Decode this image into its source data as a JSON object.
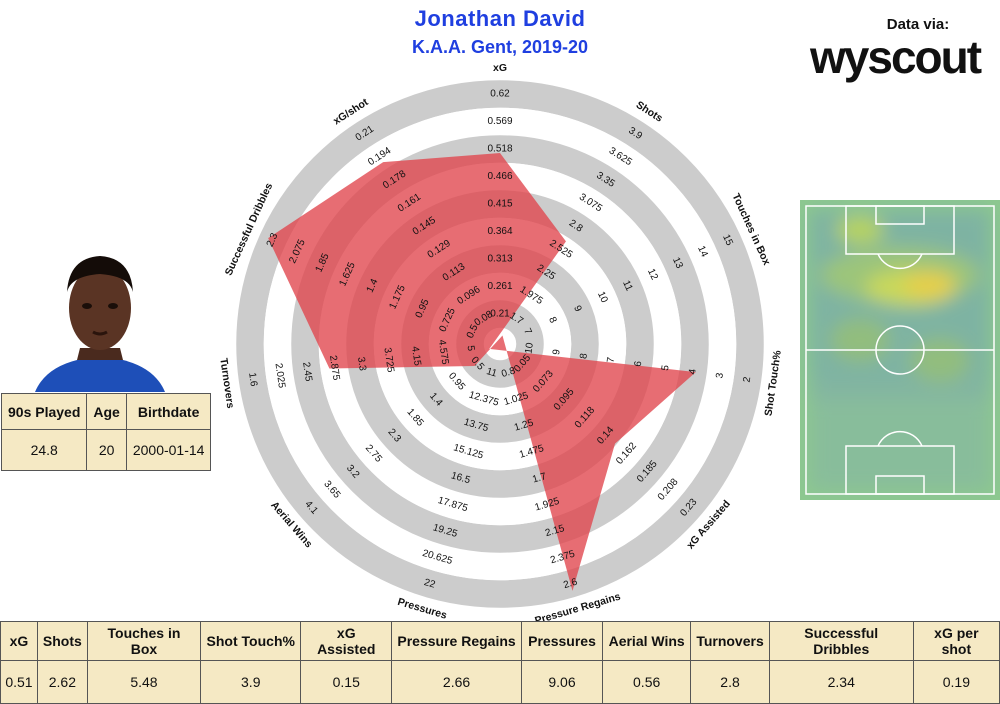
{
  "header": {
    "title": "Jonathan David",
    "subtitle": "K.A.A. Gent, 2019-20",
    "data_via": "Data via:",
    "brand": "wyscout"
  },
  "player_table": {
    "headers": [
      "90s Played",
      "Age",
      "Birthdate"
    ],
    "values": [
      "24.8",
      "20",
      "2000-01-14"
    ]
  },
  "stats_table": {
    "headers": [
      "xG",
      "Shots",
      "Touches in Box",
      "Shot Touch%",
      "xG Assisted",
      "Pressure Regains",
      "Pressures",
      "Aerial Wins",
      "Turnovers",
      "Successful Dribbles",
      "xG per shot"
    ],
    "values": [
      "0.51",
      "2.62",
      "5.48",
      "3.9",
      "0.15",
      "2.66",
      "9.06",
      "0.56",
      "2.8",
      "2.34",
      "0.19"
    ]
  },
  "colors": {
    "title": "#1f3fe0",
    "polygon": "#e0444b",
    "ring_gray": "#cccccc",
    "table_bg": "#f5e9c4",
    "pitch_green": "#8dc88f"
  },
  "chart_data": {
    "type": "radar",
    "axes": [
      {
        "name": "xG",
        "ticks": [
          "0.62",
          "0.569",
          "0.518",
          "0.466",
          "0.415",
          "0.364",
          "0.313",
          "0.261",
          "0.21"
        ],
        "value": 0.51
      },
      {
        "name": "Shots",
        "ticks": [
          "3.9",
          "3.625",
          "3.35",
          "3.075",
          "2.8",
          "2.525",
          "2.25",
          "1.975",
          "1.7"
        ],
        "value": 2.62
      },
      {
        "name": "Touches in Box",
        "ticks": [
          "15",
          "14",
          "13",
          "12",
          "11",
          "10",
          "9",
          "8",
          "7"
        ],
        "value": 5.48
      },
      {
        "name": "Shot Touch%",
        "ticks": [
          "2",
          "3",
          "4",
          "5",
          "6",
          "7",
          "8",
          "9",
          "10"
        ],
        "value": 3.9
      },
      {
        "name": "xG Assisted",
        "ticks": [
          "0.23",
          "0.208",
          "0.185",
          "0.162",
          "0.14",
          "0.118",
          "0.095",
          "0.073",
          "0.05"
        ],
        "value": 0.15
      },
      {
        "name": "Pressure Regains",
        "ticks": [
          "2.6",
          "2.375",
          "2.15",
          "1.925",
          "1.7",
          "1.475",
          "1.25",
          "1.025",
          "0.8"
        ],
        "value": 2.66
      },
      {
        "name": "Pressures",
        "ticks": [
          "22",
          "20.625",
          "19.25",
          "17.875",
          "16.5",
          "15.125",
          "13.75",
          "12.375",
          "11"
        ],
        "value": 9.06
      },
      {
        "name": "Aerial Wins",
        "ticks": [
          "4.1",
          "3.65",
          "3.2",
          "2.75",
          "2.3",
          "1.85",
          "1.4",
          "0.95",
          "0.5"
        ],
        "value": 0.56
      },
      {
        "name": "Turnovers",
        "ticks": [
          "1.6",
          "2.025",
          "2.45",
          "2.875",
          "3.3",
          "3.725",
          "4.15",
          "4.575",
          "5"
        ],
        "value": 2.8
      },
      {
        "name": "Successful Dribbles",
        "ticks": [
          "2.3",
          "2.075",
          "1.85",
          "1.625",
          "1.4",
          "1.175",
          "0.95",
          "0.725",
          "0.5"
        ],
        "value": 2.34
      },
      {
        "name": "xG/shot",
        "ticks": [
          "0.21",
          "0.194",
          "0.178",
          "0.161",
          "0.145",
          "0.129",
          "0.113",
          "0.096",
          "0.08"
        ],
        "value": 0.19
      }
    ]
  }
}
